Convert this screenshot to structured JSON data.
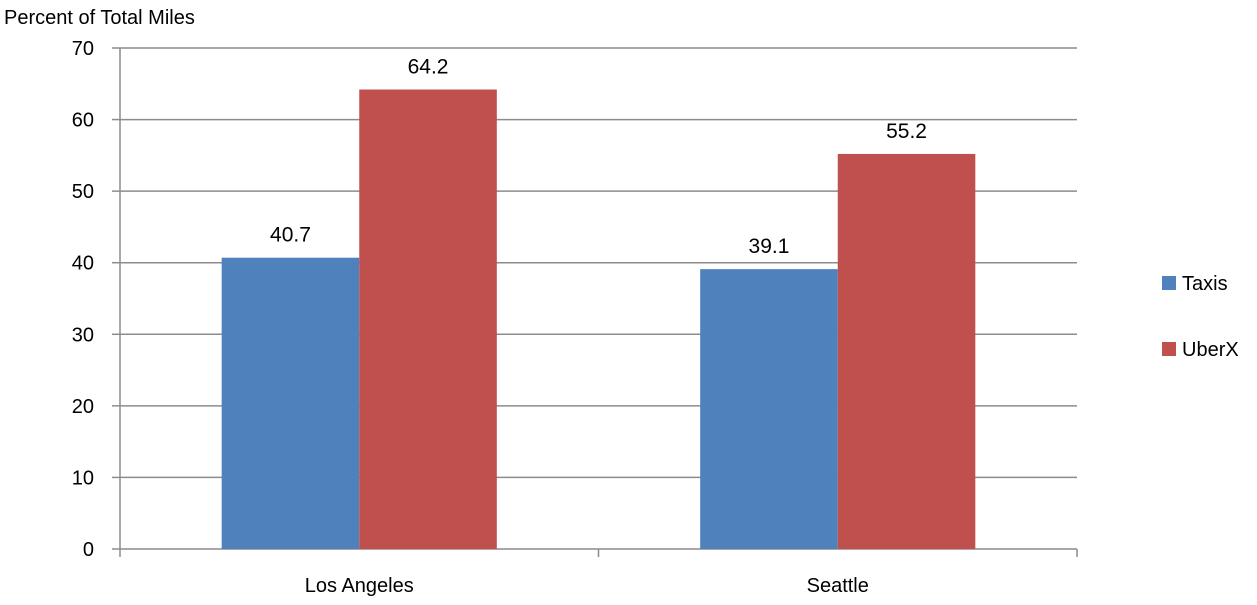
{
  "chart_data": {
    "type": "bar",
    "title": "",
    "xlabel": "",
    "ylabel": "Percent of Total Miles",
    "categories": [
      "Los Angeles",
      "Seattle"
    ],
    "series": [
      {
        "name": "Taxis",
        "values": [
          40.7,
          39.1
        ],
        "labels": [
          "40.7",
          "39.1"
        ],
        "color": "#4F81BD"
      },
      {
        "name": "UberX",
        "values": [
          64.2,
          55.2
        ],
        "labels": [
          "64.2",
          "55.2"
        ],
        "color": "#C0504D"
      }
    ],
    "ylim": [
      0,
      70
    ],
    "yticks": [
      0,
      10,
      20,
      30,
      40,
      50,
      60,
      70
    ],
    "grid": true,
    "legend_position": "right"
  },
  "colors": {
    "gridline": "#8C8C8C",
    "axis": "#8C8C8C"
  }
}
